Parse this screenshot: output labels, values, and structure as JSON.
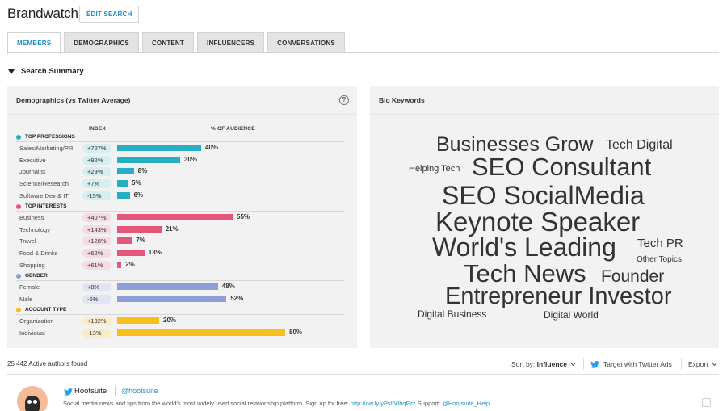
{
  "header": {
    "brand": "Brandwatch",
    "edit_search": "EDIT SEARCH"
  },
  "tabs": [
    {
      "label": "MEMBERS",
      "active": true
    },
    {
      "label": "DEMOGRAPHICS",
      "active": false
    },
    {
      "label": "CONTENT",
      "active": false
    },
    {
      "label": "INFLUENCERS",
      "active": false
    },
    {
      "label": "CONVERSATIONS",
      "active": false
    }
  ],
  "summary": {
    "label": "Search Summary"
  },
  "demographics": {
    "title": "Demographics (vs Twitter Average)",
    "help": "?",
    "col_index": "INDEX",
    "col_audience": "% OF AUDIENCE",
    "sections": [
      {
        "name": "TOP PROFESSIONS",
        "color": "#26afc0",
        "index_bg": "#d5eef1",
        "rows": [
          {
            "label": "Sales/Marketing/PR",
            "index": "+727%",
            "pct": 40
          },
          {
            "label": "Executive",
            "index": "+92%",
            "pct": 30
          },
          {
            "label": "Journalist",
            "index": "+29%",
            "pct": 8
          },
          {
            "label": "Science/Research",
            "index": "+7%",
            "pct": 5
          },
          {
            "label": "Software Dev & IT",
            "index": "-15%",
            "pct": 6
          }
        ]
      },
      {
        "name": "TOP INTERESTS",
        "color": "#e4577b",
        "index_bg": "#f6dbe2",
        "rows": [
          {
            "label": "Business",
            "index": "+407%",
            "pct": 55
          },
          {
            "label": "Technology",
            "index": "+143%",
            "pct": 21
          },
          {
            "label": "Travel",
            "index": "+128%",
            "pct": 7
          },
          {
            "label": "Food & Drinks",
            "index": "+62%",
            "pct": 13
          },
          {
            "label": "Shopping",
            "index": "+61%",
            "pct": 2
          }
        ]
      },
      {
        "name": "GENDER",
        "color": "#8c9fd6",
        "index_bg": "#e0e4f3",
        "rows": [
          {
            "label": "Female",
            "index": "+8%",
            "pct": 48
          },
          {
            "label": "Male",
            "index": "-6%",
            "pct": 52
          }
        ]
      },
      {
        "name": "ACCOUNT TYPE",
        "color": "#f7bf1e",
        "index_bg": "#f8ecc9",
        "rows": [
          {
            "label": "Organization",
            "index": "+132%",
            "pct": 20
          },
          {
            "label": "Individual",
            "index": "-13%",
            "pct": 80
          }
        ]
      }
    ]
  },
  "bio_keywords": {
    "title": "Bio Keywords",
    "words": [
      "Businesses Grow",
      "Tech Digital",
      "Helping Tech",
      "SEO Consultant",
      "SEO SocialMedia",
      "Keynote Speaker",
      "World's Leading",
      "Tech PR",
      "Other Topics",
      "Tech News",
      "Founder",
      "Entrepreneur Investor",
      "Digital Business",
      "Digital World"
    ]
  },
  "results": {
    "count_text": "25 442 Active authors found",
    "sort_label": "Sort by:",
    "sort_value": "Influence",
    "target_label": "Target with Twitter Ads",
    "export_label": "Export"
  },
  "author": {
    "name": "Hootsuite",
    "handle": "@hootsuite",
    "bio_text": "Social media news and tips from the world's most widely used social relationship platform. Sign up for free:",
    "bio_link": "http://ow.ly/yPvI50hqFzz",
    "bio_support_label": "Support:",
    "bio_support_handle": "@Hootsuite_Help"
  }
}
